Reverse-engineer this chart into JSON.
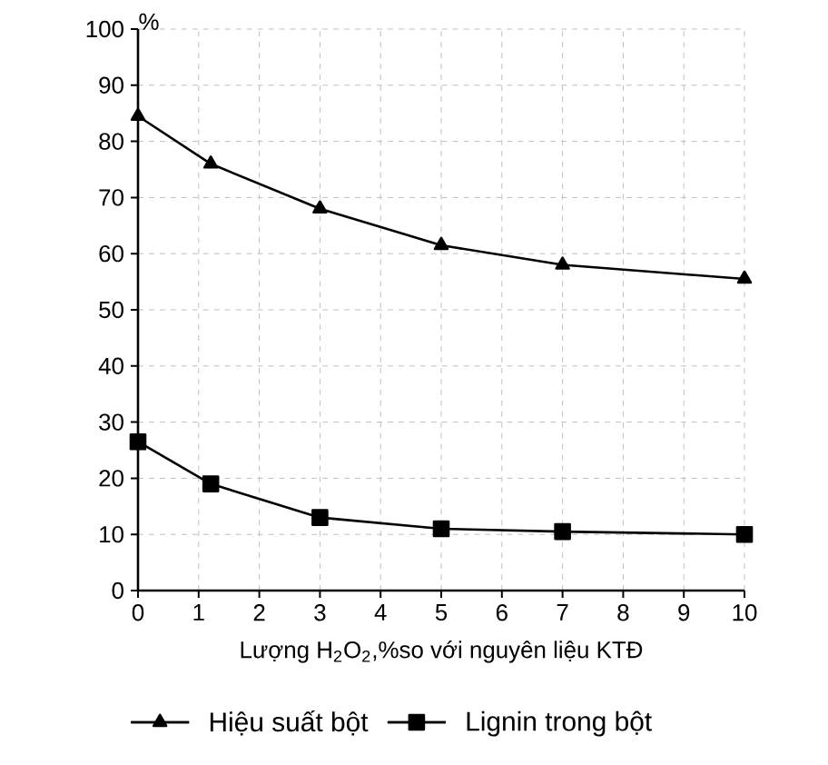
{
  "chart_data": {
    "type": "line",
    "ylabel": "%",
    "xlabel": "Lượng H$_{2}$O$_{2}$,%so với nguyên liệu KTĐ",
    "x": [
      0,
      1.2,
      3,
      5,
      7,
      10
    ],
    "series": [
      {
        "name": "Hiệu suất bột",
        "color": "#000000",
        "marker": "triangle",
        "values": [
          84.5,
          76,
          68,
          61.5,
          58,
          55.5
        ]
      },
      {
        "name": "Lignin trong bột",
        "color": "#000000",
        "marker": "square",
        "values": [
          26.5,
          19,
          13,
          11,
          10.5,
          10
        ]
      }
    ],
    "xlim": [
      0,
      10
    ],
    "xticks": [
      0,
      1,
      2,
      3,
      4,
      5,
      6,
      7,
      8,
      9,
      10
    ],
    "ylim": [
      0,
      100
    ],
    "yticks": [
      0,
      10,
      20,
      30,
      40,
      50,
      60,
      70,
      80,
      90,
      100
    ],
    "grid": true,
    "legend": "bottom",
    "line_style": "solid"
  }
}
